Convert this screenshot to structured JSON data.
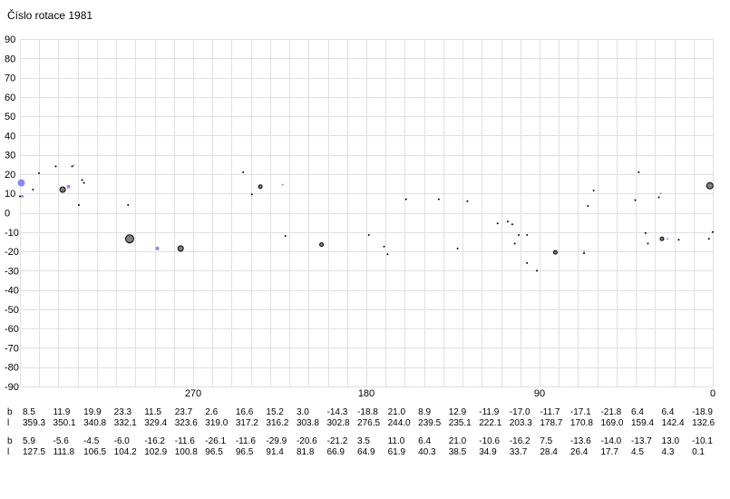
{
  "title": "Číslo rotace 1981",
  "chart_data": {
    "type": "scatter",
    "title": "Číslo rotace 1981",
    "xlabel": "",
    "ylabel": "",
    "xlim": [
      360,
      0
    ],
    "ylim": [
      -90,
      90
    ],
    "yticks": [
      90,
      80,
      70,
      60,
      50,
      40,
      30,
      20,
      10,
      0,
      -10,
      -20,
      -30,
      -40,
      -50,
      -60,
      -70,
      -80,
      -90
    ],
    "xticks": [
      {
        "value": 270,
        "label": "270"
      },
      {
        "value": 180,
        "label": "180"
      },
      {
        "value": 90,
        "label": "90"
      },
      {
        "value": 0,
        "label": "0"
      }
    ],
    "grid": true,
    "colors": {
      "black": "#000000",
      "blue": "#8888ff",
      "grey_fill": "#808080",
      "grid": "#e0e0e0"
    },
    "points": [
      {
        "l": 359.3,
        "b": 15.5,
        "r": 4.0,
        "color": "blue"
      },
      {
        "l": 358.8,
        "b": 8.5,
        "r": 1.5,
        "color": "blue"
      },
      {
        "l": 360.0,
        "b": 8.5,
        "r": 1.0,
        "color": "black"
      },
      {
        "l": 353.2,
        "b": 12.0,
        "r": 1.0,
        "color": "black"
      },
      {
        "l": 350.1,
        "b": 20.5,
        "r": 1.0,
        "color": "black"
      },
      {
        "l": 341.4,
        "b": 24.0,
        "r": 1.0,
        "color": "black"
      },
      {
        "l": 337.8,
        "b": 12.0,
        "r": 3.0,
        "color": "grey"
      },
      {
        "l": 334.8,
        "b": 13.5,
        "r": 2.0,
        "color": "blue"
      },
      {
        "l": 332.9,
        "b": 24.0,
        "r": 1.0,
        "color": "black"
      },
      {
        "l": 332.1,
        "b": 24.5,
        "r": 1.0,
        "color": "blue"
      },
      {
        "l": 329.4,
        "b": 4.0,
        "r": 1.0,
        "color": "black"
      },
      {
        "l": 327.7,
        "b": 17.0,
        "r": 1.0,
        "color": "black"
      },
      {
        "l": 326.7,
        "b": 15.5,
        "r": 1.0,
        "color": "black"
      },
      {
        "l": 303.8,
        "b": 4.0,
        "r": 1.0,
        "color": "black"
      },
      {
        "l": 303.0,
        "b": -13.5,
        "r": 4.5,
        "color": "grey"
      },
      {
        "l": 288.6,
        "b": -18.5,
        "r": 2.0,
        "color": "blue"
      },
      {
        "l": 276.5,
        "b": -18.5,
        "r": 3.0,
        "color": "grey"
      },
      {
        "l": 244.0,
        "b": 21.0,
        "r": 1.0,
        "color": "black"
      },
      {
        "l": 239.5,
        "b": 9.5,
        "r": 1.0,
        "color": "black"
      },
      {
        "l": 235.1,
        "b": 13.5,
        "r": 2.0,
        "color": "grey"
      },
      {
        "l": 223.5,
        "b": 14.5,
        "r": 1.0,
        "color": "blue"
      },
      {
        "l": 222.1,
        "b": -12.0,
        "r": 1.0,
        "color": "black"
      },
      {
        "l": 203.3,
        "b": -16.5,
        "r": 2.0,
        "color": "grey"
      },
      {
        "l": 178.7,
        "b": -11.5,
        "r": 1.0,
        "color": "black"
      },
      {
        "l": 170.8,
        "b": -17.5,
        "r": 1.0,
        "color": "black"
      },
      {
        "l": 169.0,
        "b": -21.5,
        "r": 1.0,
        "color": "black"
      },
      {
        "l": 159.4,
        "b": 7.0,
        "r": 1.0,
        "color": "black"
      },
      {
        "l": 142.4,
        "b": 7.0,
        "r": 1.0,
        "color": "black"
      },
      {
        "l": 132.6,
        "b": -18.5,
        "r": 1.0,
        "color": "black"
      },
      {
        "l": 127.5,
        "b": 6.0,
        "r": 1.0,
        "color": "black"
      },
      {
        "l": 111.8,
        "b": -5.5,
        "r": 1.0,
        "color": "black"
      },
      {
        "l": 106.5,
        "b": -4.5,
        "r": 1.0,
        "color": "black"
      },
      {
        "l": 104.2,
        "b": -6.0,
        "r": 1.0,
        "color": "black"
      },
      {
        "l": 102.9,
        "b": -16.0,
        "r": 1.0,
        "color": "black"
      },
      {
        "l": 100.8,
        "b": -11.5,
        "r": 1.0,
        "color": "black"
      },
      {
        "l": 96.5,
        "b": -26.0,
        "r": 1.0,
        "color": "black"
      },
      {
        "l": 96.5,
        "b": -11.5,
        "r": 1.0,
        "color": "black"
      },
      {
        "l": 91.4,
        "b": -30.0,
        "r": 1.0,
        "color": "black"
      },
      {
        "l": 81.8,
        "b": -20.5,
        "r": 2.0,
        "color": "grey"
      },
      {
        "l": 64.9,
        "b": 3.5,
        "r": 1.0,
        "color": "black"
      },
      {
        "l": 66.9,
        "b": -21.0,
        "r": 1.0,
        "color": "black"
      },
      {
        "l": 66.9,
        "b": -20.0,
        "r": 1.0,
        "color": "blue"
      },
      {
        "l": 61.9,
        "b": 11.5,
        "r": 1.0,
        "color": "black"
      },
      {
        "l": 40.3,
        "b": 6.5,
        "r": 1.0,
        "color": "black"
      },
      {
        "l": 38.5,
        "b": 21.0,
        "r": 1.0,
        "color": "black"
      },
      {
        "l": 34.9,
        "b": -10.5,
        "r": 1.0,
        "color": "black"
      },
      {
        "l": 33.7,
        "b": -16.0,
        "r": 1.0,
        "color": "black"
      },
      {
        "l": 28.0,
        "b": 8.0,
        "r": 1.0,
        "color": "black"
      },
      {
        "l": 27.0,
        "b": 10.0,
        "r": 1.0,
        "color": "blue"
      },
      {
        "l": 26.4,
        "b": -13.5,
        "r": 2.0,
        "color": "grey"
      },
      {
        "l": 23.5,
        "b": -13.5,
        "r": 1.0,
        "color": "blue"
      },
      {
        "l": 17.7,
        "b": -14.0,
        "r": 1.0,
        "color": "black"
      },
      {
        "l": 1.5,
        "b": 14.0,
        "r": 3.5,
        "color": "grey"
      },
      {
        "l": 2.0,
        "b": -13.5,
        "r": 1.0,
        "color": "black"
      },
      {
        "l": 0.0,
        "b": -10.0,
        "r": 1.0,
        "color": "black"
      }
    ],
    "table_rows": [
      {
        "b_label": "b",
        "l_label": "l",
        "columns": [
          {
            "b": "8.5",
            "l": "359.3"
          },
          {
            "b": "11.9",
            "l": "350.1"
          },
          {
            "b": "19.9",
            "l": "340.8"
          },
          {
            "b": "23.3",
            "l": "332.1"
          },
          {
            "b": "11.5",
            "l": "329.4"
          },
          {
            "b": "23.7",
            "l": "323.6"
          },
          {
            "b": "2.6",
            "l": "319.0"
          },
          {
            "b": "16.6",
            "l": "317.2"
          },
          {
            "b": "15.2",
            "l": "316.2"
          },
          {
            "b": "3.0",
            "l": "303.8"
          },
          {
            "b": "-14.3",
            "l": "302.8"
          },
          {
            "b": "-18.8",
            "l": "276.5"
          },
          {
            "b": "21.0",
            "l": "244.0"
          },
          {
            "b": "8.9",
            "l": "239.5"
          },
          {
            "b": "12.9",
            "l": "235.1"
          },
          {
            "b": "-11.9",
            "l": "222.1"
          },
          {
            "b": "-17.0",
            "l": "203.3"
          },
          {
            "b": "-11.7",
            "l": "178.7"
          },
          {
            "b": "-17.1",
            "l": "170.8"
          },
          {
            "b": "-21.8",
            "l": "169.0"
          },
          {
            "b": "6.4",
            "l": "159.4"
          },
          {
            "b": "6.4",
            "l": "142.4"
          },
          {
            "b": "-18.9",
            "l": "132.6"
          }
        ]
      },
      {
        "b_label": "b",
        "l_label": "l",
        "columns": [
          {
            "b": "5.9",
            "l": "127.5"
          },
          {
            "b": "-5.6",
            "l": "111.8"
          },
          {
            "b": "-4.5",
            "l": "106.5"
          },
          {
            "b": "-6.0",
            "l": "104.2"
          },
          {
            "b": "-16.2",
            "l": "102.9"
          },
          {
            "b": "-11.6",
            "l": "100.8"
          },
          {
            "b": "-26.1",
            "l": "96.5"
          },
          {
            "b": "-11.6",
            "l": "96.5"
          },
          {
            "b": "-29.9",
            "l": "91.4"
          },
          {
            "b": "-20.6",
            "l": "81.8"
          },
          {
            "b": "-21.2",
            "l": "66.9"
          },
          {
            "b": "3.5",
            "l": "64.9"
          },
          {
            "b": "11.0",
            "l": "61.9"
          },
          {
            "b": "6.4",
            "l": "40.3"
          },
          {
            "b": "21.0",
            "l": "38.5"
          },
          {
            "b": "-10.6",
            "l": "34.9"
          },
          {
            "b": "-16.2",
            "l": "33.7"
          },
          {
            "b": "7.5",
            "l": "28.4"
          },
          {
            "b": "-13.6",
            "l": "26.4"
          },
          {
            "b": "-14.0",
            "l": "17.7"
          },
          {
            "b": "-13.7",
            "l": "4.5"
          },
          {
            "b": "13.0",
            "l": "4.3"
          },
          {
            "b": "-10.1",
            "l": "0.1"
          }
        ]
      }
    ]
  }
}
